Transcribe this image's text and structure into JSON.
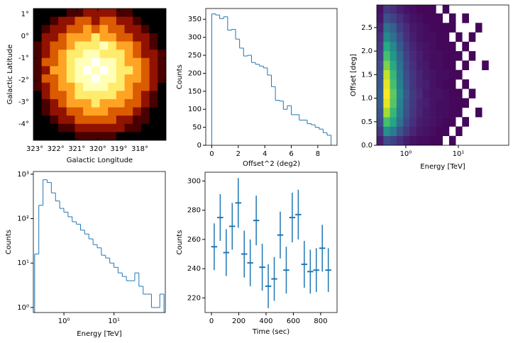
{
  "chart_data": [
    {
      "type": "image",
      "xlabel": "Galactic Longitude",
      "ylabel": "Galactic Latitude",
      "colormap": "afmhot",
      "xlim": [
        323.07,
        316.75
      ],
      "ylim": [
        -4.74,
        1.26
      ],
      "xticks": [
        {
          "value": 323,
          "label": "323°"
        },
        {
          "value": 322,
          "label": "322°"
        },
        {
          "value": 321,
          "label": "321°"
        },
        {
          "value": 320,
          "label": "320°"
        },
        {
          "value": 319,
          "label": "319°"
        },
        {
          "value": 318,
          "label": "318°"
        }
      ],
      "yticks": [
        {
          "value": 1,
          "label": "1°"
        },
        {
          "value": 0,
          "label": "0°"
        },
        {
          "value": -1,
          "label": "-1°"
        },
        {
          "value": -2,
          "label": "-2°"
        },
        {
          "value": -3,
          "label": "-3°"
        },
        {
          "value": -4,
          "label": "-4°"
        }
      ],
      "z": [
        [
          0,
          0,
          0,
          0,
          1,
          1,
          2,
          2,
          2,
          2,
          1,
          1,
          0,
          0,
          0,
          0
        ],
        [
          0,
          0,
          1,
          2,
          2,
          3,
          3,
          2,
          3,
          3,
          2,
          2,
          1,
          0,
          0,
          0
        ],
        [
          0,
          1,
          2,
          2,
          3,
          3,
          4,
          3,
          4,
          3,
          3,
          2,
          2,
          1,
          0,
          0
        ],
        [
          0,
          2,
          2,
          3,
          4,
          4,
          4,
          5,
          4,
          4,
          3,
          3,
          2,
          2,
          1,
          0
        ],
        [
          1,
          2,
          3,
          3,
          4,
          5,
          5,
          5,
          6,
          5,
          4,
          4,
          3,
          2,
          1,
          0
        ],
        [
          1,
          2,
          3,
          4,
          5,
          5,
          6,
          6,
          5,
          5,
          5,
          4,
          3,
          2,
          2,
          1
        ],
        [
          1,
          3,
          3,
          4,
          5,
          6,
          6,
          7,
          6,
          6,
          5,
          4,
          4,
          3,
          2,
          1
        ],
        [
          1,
          2,
          4,
          4,
          5,
          6,
          7,
          6,
          7,
          6,
          5,
          5,
          4,
          3,
          2,
          1
        ],
        [
          1,
          3,
          3,
          4,
          5,
          6,
          6,
          7,
          6,
          6,
          5,
          4,
          4,
          3,
          2,
          1
        ],
        [
          1,
          2,
          3,
          4,
          4,
          5,
          6,
          6,
          6,
          5,
          5,
          4,
          3,
          3,
          2,
          0
        ],
        [
          0,
          2,
          3,
          3,
          4,
          5,
          5,
          5,
          5,
          5,
          4,
          4,
          3,
          2,
          1,
          0
        ],
        [
          0,
          1,
          2,
          3,
          4,
          4,
          4,
          5,
          4,
          4,
          4,
          3,
          3,
          2,
          1,
          0
        ],
        [
          0,
          1,
          2,
          2,
          3,
          3,
          4,
          4,
          4,
          3,
          3,
          3,
          2,
          1,
          0,
          0
        ],
        [
          0,
          0,
          1,
          2,
          2,
          3,
          3,
          3,
          3,
          3,
          2,
          2,
          1,
          1,
          0,
          0
        ],
        [
          0,
          0,
          0,
          1,
          1,
          2,
          2,
          2,
          2,
          2,
          2,
          1,
          1,
          0,
          0,
          0
        ],
        [
          0,
          0,
          0,
          0,
          0,
          1,
          1,
          1,
          1,
          1,
          0,
          0,
          0,
          0,
          0,
          0
        ]
      ]
    },
    {
      "type": "histogram",
      "xlabel": "Offset^2 (deg2)",
      "ylabel": "Counts",
      "color": "#1f77b4",
      "xlim": [
        -0.45,
        9.45
      ],
      "ylim": [
        0,
        380
      ],
      "xticks": [
        0,
        2,
        4,
        6,
        8
      ],
      "yticks": [
        0,
        50,
        100,
        150,
        200,
        250,
        300,
        350
      ],
      "bins": [
        0,
        0.3,
        0.6,
        0.9,
        1.2,
        1.5,
        1.8,
        2.1,
        2.4,
        2.7,
        3.0,
        3.3,
        3.6,
        3.9,
        4.2,
        4.5,
        4.8,
        5.1,
        5.4,
        5.7,
        6.0,
        6.3,
        6.6,
        6.9,
        7.2,
        7.5,
        7.8,
        8.1,
        8.4,
        8.7,
        9.0
      ],
      "values": [
        365,
        362,
        352,
        357,
        320,
        322,
        295,
        270,
        248,
        250,
        230,
        225,
        220,
        215,
        195,
        163,
        125,
        123,
        100,
        110,
        85,
        85,
        70,
        70,
        60,
        57,
        50,
        45,
        35,
        28
      ]
    },
    {
      "type": "hist2d",
      "xlabel": "Energy [TeV]",
      "ylabel": "Offset [deg]",
      "colormap": "viridis",
      "xscale": "log",
      "xlim": [
        0.28,
        91
      ],
      "ylim": [
        0,
        2.98
      ],
      "xticks": [
        {
          "value": 1,
          "label": "10⁰"
        },
        {
          "value": 10,
          "label": "10¹"
        }
      ],
      "yticks": [
        {
          "value": 0,
          "label": "0.0"
        },
        0.5,
        {
          "value": 1,
          "label": "1.0"
        },
        1.5,
        {
          "value": 2,
          "label": "2.0"
        },
        2.5
      ],
      "xbins": [
        0.28,
        0.374,
        0.498,
        0.665,
        0.887,
        1.18,
        1.58,
        2.1,
        2.81,
        3.74,
        5.0,
        6.66,
        8.88,
        11.8,
        15.8,
        21.1,
        28.1,
        37.5,
        50,
        66.7,
        89
      ],
      "ybins": [
        0,
        0.2,
        0.4,
        0.6,
        0.8,
        1.0,
        1.2,
        1.4,
        1.6,
        1.8,
        2.0,
        2.2,
        2.4,
        2.6,
        2.8,
        3.0
      ],
      "z": [
        [
          5,
          14,
          12,
          8,
          5,
          3,
          2,
          2,
          1,
          1,
          null,
          1,
          null,
          null,
          null,
          null,
          null,
          null,
          null,
          null
        ],
        [
          10,
          30,
          25,
          16,
          10,
          6,
          4,
          3,
          2,
          1,
          1,
          null,
          1,
          null,
          null,
          null,
          null,
          null,
          null,
          null
        ],
        [
          14,
          42,
          35,
          22,
          13,
          8,
          5,
          4,
          3,
          2,
          1,
          1,
          null,
          1,
          null,
          null,
          null,
          null,
          null,
          null
        ],
        [
          16,
          52,
          40,
          25,
          15,
          9,
          6,
          4,
          3,
          2,
          2,
          1,
          1,
          null,
          null,
          1,
          null,
          null,
          null,
          null
        ],
        [
          18,
          58,
          44,
          27,
          16,
          10,
          6,
          5,
          3,
          2,
          2,
          1,
          1,
          1,
          null,
          null,
          null,
          null,
          null,
          null
        ],
        [
          18,
          60,
          45,
          28,
          17,
          10,
          7,
          4,
          3,
          3,
          2,
          1,
          1,
          null,
          1,
          null,
          null,
          null,
          null,
          null
        ],
        [
          17,
          58,
          42,
          26,
          15,
          9,
          6,
          5,
          3,
          2,
          1,
          1,
          null,
          1,
          null,
          null,
          null,
          null,
          null,
          null
        ],
        [
          16,
          55,
          40,
          24,
          14,
          9,
          6,
          4,
          3,
          2,
          2,
          1,
          1,
          null,
          null,
          null,
          null,
          null,
          null,
          null
        ],
        [
          14,
          48,
          36,
          22,
          13,
          8,
          5,
          4,
          2,
          2,
          1,
          1,
          null,
          1,
          null,
          null,
          1,
          null,
          null,
          null
        ],
        [
          12,
          42,
          32,
          20,
          12,
          7,
          5,
          3,
          2,
          2,
          1,
          1,
          1,
          null,
          1,
          null,
          null,
          null,
          null,
          null
        ],
        [
          10,
          36,
          28,
          17,
          10,
          6,
          4,
          3,
          2,
          1,
          1,
          1,
          null,
          1,
          null,
          null,
          null,
          null,
          null,
          null
        ],
        [
          8,
          28,
          22,
          14,
          8,
          5,
          3,
          2,
          2,
          1,
          1,
          null,
          1,
          null,
          1,
          null,
          null,
          null,
          null,
          null
        ],
        [
          6,
          22,
          18,
          11,
          7,
          4,
          3,
          2,
          1,
          1,
          1,
          1,
          null,
          null,
          null,
          1,
          null,
          null,
          null,
          null
        ],
        [
          4,
          15,
          12,
          8,
          5,
          3,
          2,
          1,
          1,
          1,
          null,
          1,
          null,
          1,
          null,
          null,
          null,
          null,
          null,
          null
        ],
        [
          3,
          10,
          8,
          5,
          3,
          2,
          1,
          1,
          1,
          null,
          1,
          null,
          null,
          null,
          null,
          null,
          null,
          null,
          null,
          null
        ]
      ]
    },
    {
      "type": "histogram",
      "xlabel": "Energy [TeV]",
      "ylabel": "Counts",
      "color": "#1f77b4",
      "xscale": "log",
      "yscale": "log",
      "xlim": [
        0.245,
        106
      ],
      "ylim": [
        0.77,
        1150
      ],
      "xticks": [
        {
          "value": 1,
          "label": "10⁰"
        },
        {
          "value": 10,
          "label": "10¹"
        }
      ],
      "yticks": [
        {
          "value": 1,
          "label": "10⁰"
        },
        {
          "value": 10,
          "label": "10¹"
        },
        {
          "value": 100,
          "label": "10²"
        },
        {
          "value": 1000,
          "label": "10³"
        }
      ],
      "bins": [
        0.26,
        0.315,
        0.382,
        0.462,
        0.56,
        0.679,
        0.822,
        0.996,
        1.207,
        1.462,
        1.771,
        2.146,
        2.6,
        3.15,
        3.816,
        4.623,
        5.601,
        6.786,
        8.221,
        9.96,
        12.07,
        14.62,
        17.71,
        21.46,
        26.0,
        31.5,
        38.2,
        46.2,
        56.0,
        67.9,
        82.2,
        99.6
      ],
      "values": [
        16,
        200,
        750,
        650,
        380,
        250,
        170,
        140,
        110,
        85,
        75,
        55,
        45,
        35,
        26,
        22,
        15,
        13,
        10,
        8,
        6,
        5,
        4,
        4,
        6,
        3,
        2,
        2,
        1,
        1,
        2
      ]
    },
    {
      "type": "errorbar",
      "xlabel": "Time (sec)",
      "ylabel": "Counts",
      "color": "#1f77b4",
      "xlim": [
        -47,
        920
      ],
      "ylim": [
        210,
        306
      ],
      "xticks": [
        0,
        200,
        400,
        600,
        800
      ],
      "yticks": [
        220,
        240,
        260,
        280,
        300
      ],
      "x": [
        20,
        64,
        108,
        152,
        196,
        240,
        284,
        328,
        372,
        416,
        460,
        504,
        548,
        592,
        636,
        680,
        724,
        768,
        812,
        856
      ],
      "xerr": [
        22,
        22,
        22,
        22,
        22,
        22,
        22,
        22,
        22,
        22,
        22,
        22,
        22,
        22,
        22,
        22,
        22,
        22,
        22,
        22
      ],
      "values": [
        255,
        275,
        251,
        269,
        285,
        250,
        244,
        273,
        241,
        228,
        233,
        263,
        239,
        275,
        277,
        243,
        238,
        239,
        254,
        239
      ],
      "yerr": [
        16,
        16,
        16,
        16,
        17,
        16,
        16,
        17,
        16,
        15,
        15,
        16,
        16,
        17,
        17,
        16,
        15,
        15,
        16,
        15
      ]
    }
  ]
}
